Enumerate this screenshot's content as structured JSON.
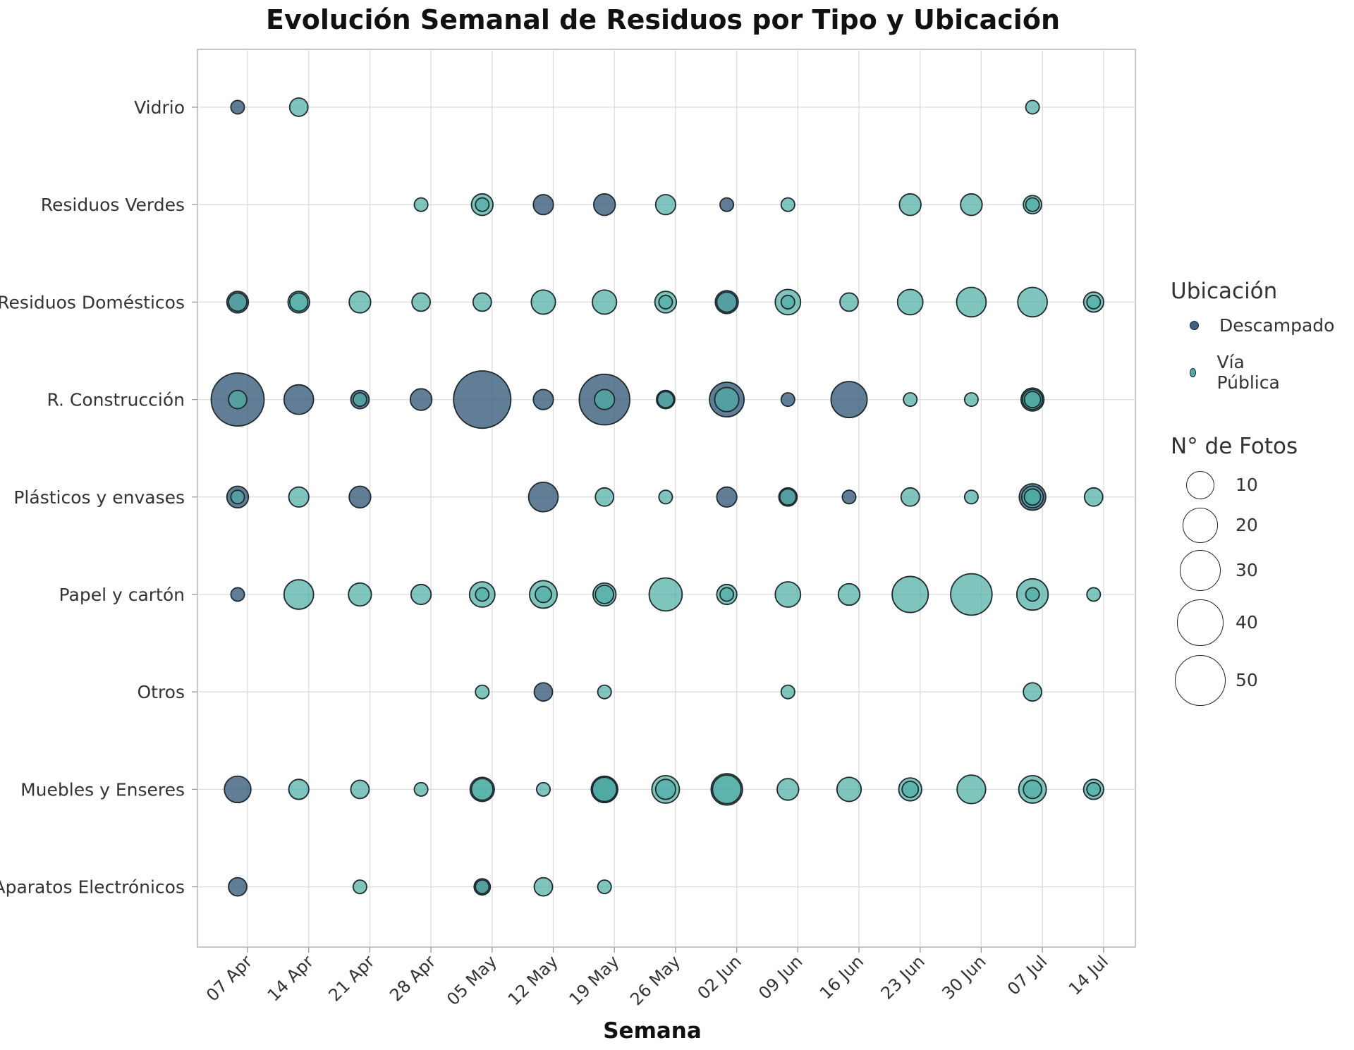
{
  "chart_data": {
    "type": "scatter",
    "title": "Evolución Semanal de Residuos por Tipo y Ubicación",
    "xlabel": "Semana",
    "ylabel": "",
    "weeks": [
      "07 Apr",
      "14 Apr",
      "21 Apr",
      "28 Apr",
      "05 May",
      "12 May",
      "19 May",
      "26 May",
      "02 Jun",
      "09 Jun",
      "16 Jun",
      "23 Jun",
      "30 Jun",
      "07 Jul",
      "14 Jul"
    ],
    "categories": [
      "Vidrio",
      "Residuos Verdes",
      "Residuos Domésticos",
      "R. Construcción",
      "Plásticos y envases",
      "Papel y cartón",
      "Otros",
      "Muebles y Enseres",
      "Aparatos Electrónicos"
    ],
    "colors": {
      "Descampado": "#3f607f",
      "Vía Pública": "#4fada5"
    },
    "series": [
      {
        "name": "Descampado",
        "points": [
          {
            "week": "07 Apr",
            "category": "Vidrio",
            "fotos": 1
          },
          {
            "week": "07 Apr",
            "category": "Residuos Domésticos",
            "fotos": 5
          },
          {
            "week": "07 Apr",
            "category": "R. Construcción",
            "fotos": 50
          },
          {
            "week": "07 Apr",
            "category": "Plásticos y envases",
            "fotos": 5
          },
          {
            "week": "07 Apr",
            "category": "Papel y cartón",
            "fotos": 1
          },
          {
            "week": "07 Apr",
            "category": "Muebles y Enseres",
            "fotos": 9
          },
          {
            "week": "07 Apr",
            "category": "Aparatos Electrónicos",
            "fotos": 3
          },
          {
            "week": "14 Apr",
            "category": "R. Construcción",
            "fotos": 12
          },
          {
            "week": "21 Apr",
            "category": "R. Construcción",
            "fotos": 3
          },
          {
            "week": "21 Apr",
            "category": "Plásticos y envases",
            "fotos": 5
          },
          {
            "week": "28 Apr",
            "category": "R. Construcción",
            "fotos": 5
          },
          {
            "week": "05 May",
            "category": "R. Construcción",
            "fotos": 60
          },
          {
            "week": "05 May",
            "category": "Aparatos Electrónicos",
            "fotos": 2
          },
          {
            "week": "12 May",
            "category": "Residuos Verdes",
            "fotos": 4
          },
          {
            "week": "12 May",
            "category": "R. Construcción",
            "fotos": 4
          },
          {
            "week": "12 May",
            "category": "Plásticos y envases",
            "fotos": 12
          },
          {
            "week": "12 May",
            "category": "Otros",
            "fotos": 3
          },
          {
            "week": "19 May",
            "category": "Residuos Verdes",
            "fotos": 5
          },
          {
            "week": "19 May",
            "category": "R. Construcción",
            "fotos": 45
          },
          {
            "week": "19 May",
            "category": "Muebles y Enseres",
            "fotos": 9
          },
          {
            "week": "26 May",
            "category": "R. Construcción",
            "fotos": 3
          },
          {
            "week": "02 Jun",
            "category": "Residuos Verdes",
            "fotos": 1
          },
          {
            "week": "02 Jun",
            "category": "Residuos Domésticos",
            "fotos": 6
          },
          {
            "week": "02 Jun",
            "category": "R. Construcción",
            "fotos": 18
          },
          {
            "week": "02 Jun",
            "category": "Plásticos y envases",
            "fotos": 4
          },
          {
            "week": "09 Jun",
            "category": "R. Construcción",
            "fotos": 1
          },
          {
            "week": "09 Jun",
            "category": "Plásticos y envases",
            "fotos": 3
          },
          {
            "week": "16 Jun",
            "category": "R. Construcción",
            "fotos": 20
          },
          {
            "week": "16 Jun",
            "category": "Plásticos y envases",
            "fotos": 1
          },
          {
            "week": "07 Jul",
            "category": "R. Construcción",
            "fotos": 6
          },
          {
            "week": "07 Jul",
            "category": "Plásticos y envases",
            "fotos": 9
          }
        ]
      },
      {
        "name": "Vía Pública",
        "points": [
          {
            "week": "07 Apr",
            "category": "Residuos Domésticos",
            "fotos": 3
          },
          {
            "week": "07 Apr",
            "category": "R. Construcción",
            "fotos": 3
          },
          {
            "week": "07 Apr",
            "category": "Plásticos y envases",
            "fotos": 1
          },
          {
            "week": "14 Apr",
            "category": "Vidrio",
            "fotos": 3
          },
          {
            "week": "14 Apr",
            "category": "Residuos Domésticos",
            "fotos": 5
          },
          {
            "week": "14 Apr",
            "category": "Plásticos y envases",
            "fotos": 4
          },
          {
            "week": "14 Apr",
            "category": "Papel y cartón",
            "fotos": 12
          },
          {
            "week": "14 Apr",
            "category": "Muebles y Enseres",
            "fotos": 4
          },
          {
            "week": "21 Apr",
            "category": "Residuos Domésticos",
            "fotos": 5
          },
          {
            "week": "21 Apr",
            "category": "R. Construcción",
            "fotos": 1
          },
          {
            "week": "21 Apr",
            "category": "Papel y cartón",
            "fotos": 6
          },
          {
            "week": "21 Apr",
            "category": "Muebles y Enseres",
            "fotos": 3
          },
          {
            "week": "21 Apr",
            "category": "Aparatos Electrónicos",
            "fotos": 1
          },
          {
            "week": "28 Apr",
            "category": "Residuos Verdes",
            "fotos": 1
          },
          {
            "week": "28 Apr",
            "category": "Residuos Domésticos",
            "fotos": 3
          },
          {
            "week": "28 Apr",
            "category": "Papel y cartón",
            "fotos": 4
          },
          {
            "week": "28 Apr",
            "category": "Muebles y Enseres",
            "fotos": 1
          },
          {
            "week": "05 May",
            "category": "Residuos Verdes",
            "fotos": 5
          },
          {
            "week": "05 May",
            "category": "Residuos Domésticos",
            "fotos": 3
          },
          {
            "week": "05 May",
            "category": "Papel y cartón",
            "fotos": 8
          },
          {
            "week": "05 May",
            "category": "Otros",
            "fotos": 1
          },
          {
            "week": "05 May",
            "category": "Muebles y Enseres",
            "fotos": 7
          },
          {
            "week": "05 May",
            "category": "Aparatos Electrónicos",
            "fotos": 1
          },
          {
            "week": "12 May",
            "category": "Residuos Domésticos",
            "fotos": 7
          },
          {
            "week": "12 May",
            "category": "Papel y cartón",
            "fotos": 10
          },
          {
            "week": "12 May",
            "category": "Muebles y Enseres",
            "fotos": 1
          },
          {
            "week": "12 May",
            "category": "Aparatos Electrónicos",
            "fotos": 3
          },
          {
            "week": "19 May",
            "category": "Residuos Domésticos",
            "fotos": 7
          },
          {
            "week": "19 May",
            "category": "R. Construcción",
            "fotos": 4
          },
          {
            "week": "19 May",
            "category": "Plásticos y envases",
            "fotos": 3
          },
          {
            "week": "19 May",
            "category": "Papel y cartón",
            "fotos": 6
          },
          {
            "week": "19 May",
            "category": "Otros",
            "fotos": 1
          },
          {
            "week": "19 May",
            "category": "Muebles y Enseres",
            "fotos": 8
          },
          {
            "week": "19 May",
            "category": "Aparatos Electrónicos",
            "fotos": 1
          },
          {
            "week": "26 May",
            "category": "Residuos Verdes",
            "fotos": 4
          },
          {
            "week": "26 May",
            "category": "Residuos Domésticos",
            "fotos": 5
          },
          {
            "week": "26 May",
            "category": "R. Construcción",
            "fotos": 2
          },
          {
            "week": "26 May",
            "category": "Plásticos y envases",
            "fotos": 1
          },
          {
            "week": "26 May",
            "category": "Papel y cartón",
            "fotos": 16
          },
          {
            "week": "26 May",
            "category": "Muebles y Enseres",
            "fotos": 10
          },
          {
            "week": "02 Jun",
            "category": "Residuos Domésticos",
            "fotos": 4
          },
          {
            "week": "02 Jun",
            "category": "R. Construcción",
            "fotos": 7
          },
          {
            "week": "02 Jun",
            "category": "Papel y cartón",
            "fotos": 4
          },
          {
            "week": "02 Jun",
            "category": "Muebles y Enseres",
            "fotos": 14
          },
          {
            "week": "09 Jun",
            "category": "Residuos Verdes",
            "fotos": 1
          },
          {
            "week": "09 Jun",
            "category": "Residuos Domésticos",
            "fotos": 8
          },
          {
            "week": "09 Jun",
            "category": "Plásticos y envases",
            "fotos": 2
          },
          {
            "week": "09 Jun",
            "category": "Papel y cartón",
            "fotos": 8
          },
          {
            "week": "09 Jun",
            "category": "Otros",
            "fotos": 1
          },
          {
            "week": "09 Jun",
            "category": "Muebles y Enseres",
            "fotos": 5
          },
          {
            "week": "16 Jun",
            "category": "Residuos Domésticos",
            "fotos": 3
          },
          {
            "week": "16 Jun",
            "category": "Papel y cartón",
            "fotos": 5
          },
          {
            "week": "16 Jun",
            "category": "Muebles y Enseres",
            "fotos": 7
          },
          {
            "week": "23 Jun",
            "category": "Residuos Verdes",
            "fotos": 5
          },
          {
            "week": "23 Jun",
            "category": "Residuos Domésticos",
            "fotos": 8
          },
          {
            "week": "23 Jun",
            "category": "R. Construcción",
            "fotos": 1
          },
          {
            "week": "23 Jun",
            "category": "Plásticos y envases",
            "fotos": 3
          },
          {
            "week": "23 Jun",
            "category": "Papel y cartón",
            "fotos": 20
          },
          {
            "week": "23 Jun",
            "category": "Muebles y Enseres",
            "fotos": 6
          },
          {
            "week": "30 Jun",
            "category": "Residuos Verdes",
            "fotos": 5
          },
          {
            "week": "30 Jun",
            "category": "Residuos Domésticos",
            "fotos": 12
          },
          {
            "week": "30 Jun",
            "category": "R. Construcción",
            "fotos": 1
          },
          {
            "week": "30 Jun",
            "category": "Plásticos y envases",
            "fotos": 1
          },
          {
            "week": "30 Jun",
            "category": "Papel y cartón",
            "fotos": 28
          },
          {
            "week": "30 Jun",
            "category": "Muebles y Enseres",
            "fotos": 11
          },
          {
            "week": "07 Jul",
            "category": "Vidrio",
            "fotos": 1
          },
          {
            "week": "07 Jul",
            "category": "Residuos Verdes",
            "fotos": 3
          },
          {
            "week": "07 Jul",
            "category": "Residuos Domésticos",
            "fotos": 12
          },
          {
            "week": "07 Jul",
            "category": "R. Construcción",
            "fotos": 4
          },
          {
            "week": "07 Jul",
            "category": "Plásticos y envases",
            "fotos": 5
          },
          {
            "week": "07 Jul",
            "category": "Papel y cartón",
            "fotos": 14
          },
          {
            "week": "07 Jul",
            "category": "Otros",
            "fotos": 3
          },
          {
            "week": "07 Jul",
            "category": "Muebles y Enseres",
            "fotos": 10
          },
          {
            "week": "14 Jul",
            "category": "Residuos Domésticos",
            "fotos": 4
          },
          {
            "week": "14 Jul",
            "category": "Plásticos y envases",
            "fotos": 3
          },
          {
            "week": "14 Jul",
            "category": "Papel y cartón",
            "fotos": 1
          },
          {
            "week": "14 Jul",
            "category": "Muebles y Enseres",
            "fotos": 4
          }
        ]
      }
    ],
    "extra_points": [
      {
        "name": "Vía Pública",
        "week": "07 Jul",
        "category": "R. Construcción",
        "fotos": 2
      },
      {
        "name": "Vía Pública",
        "week": "07 Jul",
        "category": "Plásticos y envases",
        "fotos": 2
      },
      {
        "name": "Vía Pública",
        "week": "07 Jul",
        "category": "Muebles y Enseres",
        "fotos": 3
      },
      {
        "name": "Vía Pública",
        "week": "07 Jul",
        "category": "Papel y cartón",
        "fotos": 1
      },
      {
        "name": "Vía Pública",
        "week": "07 Jul",
        "category": "Residuos Verdes",
        "fotos": 1
      },
      {
        "name": "Vía Pública",
        "week": "02 Jun",
        "category": "Papel y cartón",
        "fotos": 1
      },
      {
        "name": "Vía Pública",
        "week": "09 Jun",
        "category": "Residuos Domésticos",
        "fotos": 1
      },
      {
        "name": "Vía Pública",
        "week": "26 May",
        "category": "Residuos Domésticos",
        "fotos": 1
      },
      {
        "name": "Vía Pública",
        "week": "26 May",
        "category": "Muebles y Enseres",
        "fotos": 4
      },
      {
        "name": "Vía Pública",
        "week": "23 Jun",
        "category": "Muebles y Enseres",
        "fotos": 2
      },
      {
        "name": "Vía Pública",
        "week": "14 Jul",
        "category": "Residuos Domésticos",
        "fotos": 1
      },
      {
        "name": "Vía Pública",
        "week": "14 Jul",
        "category": "Muebles y Enseres",
        "fotos": 1
      },
      {
        "name": "Vía Pública",
        "week": "12 May",
        "category": "Papel y cartón",
        "fotos": 2
      },
      {
        "name": "Vía Pública",
        "week": "05 May",
        "category": "Papel y cartón",
        "fotos": 1
      },
      {
        "name": "Vía Pública",
        "week": "05 May",
        "category": "Residuos Verdes",
        "fotos": 1
      },
      {
        "name": "Vía Pública",
        "week": "05 May",
        "category": "Muebles y Enseres",
        "fotos": 5
      },
      {
        "name": "Vía Pública",
        "week": "19 May",
        "category": "Papel y cartón",
        "fotos": 3
      },
      {
        "name": "Vía Pública",
        "week": "19 May",
        "category": "Muebles y Enseres",
        "fotos": 7
      },
      {
        "name": "Vía Pública",
        "week": "14 Apr",
        "category": "Residuos Domésticos",
        "fotos": 3
      },
      {
        "name": "Vía Pública",
        "week": "02 Jun",
        "category": "Muebles y Enseres",
        "fotos": 11
      }
    ],
    "size_legend": {
      "title": "N° de Fotos",
      "values": [
        10,
        20,
        30,
        40,
        50
      ]
    },
    "color_legend": {
      "title": "Ubicación",
      "entries": [
        "Descampado",
        "Vía Pública"
      ]
    },
    "grid": true,
    "legend_position": "right"
  }
}
